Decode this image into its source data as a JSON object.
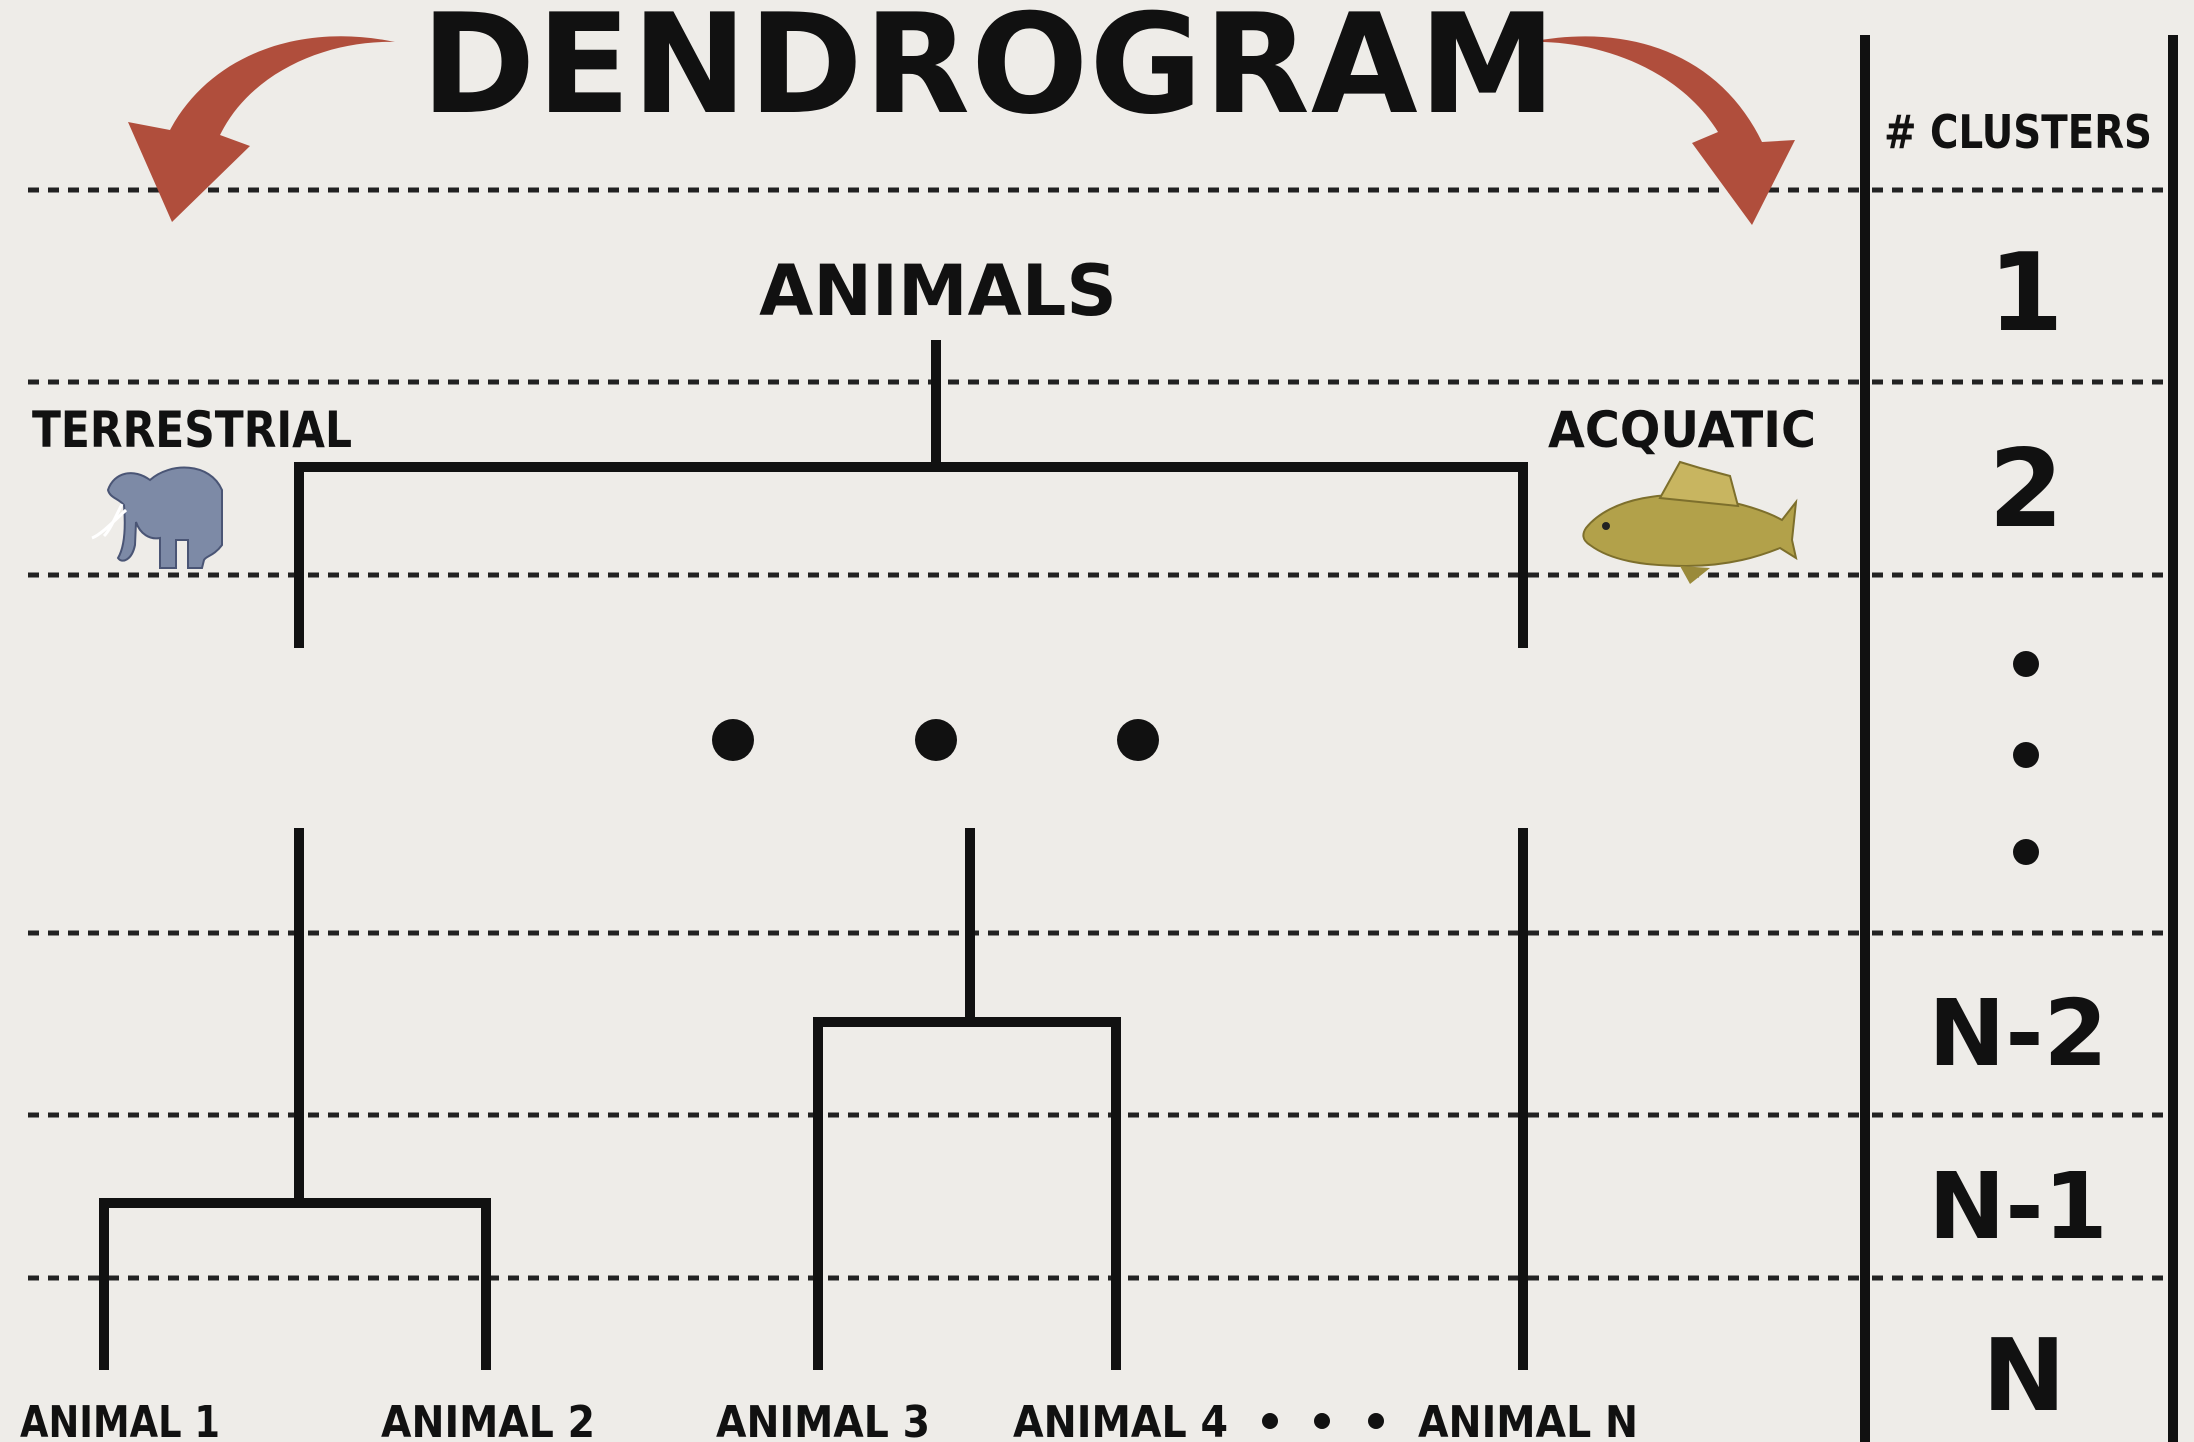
{
  "title": "DENDROGRAM",
  "root": {
    "label": "ANIMALS"
  },
  "branches": {
    "left": {
      "label": "TERRESTRIAL",
      "icon": "elephant-icon"
    },
    "right": {
      "label": "ACQUATIC",
      "icon": "fish-icon"
    }
  },
  "ellipsis": "• • •",
  "leaves": [
    "ANIMAL 1",
    "ANIMAL 2",
    "ANIMAL 3",
    "ANIMAL 4",
    "ANIMAL N"
  ],
  "leaf_gap": "• • •",
  "clusters_panel": {
    "header": "# CLUSTERS",
    "levels": [
      "1",
      "2",
      "N-2",
      "N-1",
      "N"
    ],
    "ellipsis": "• • •"
  },
  "colors": {
    "background": "#eeece8",
    "ink": "#111111",
    "arrow": "#b04e3c",
    "elephant": "#7d8aa6",
    "fish": "#b2a14a"
  }
}
